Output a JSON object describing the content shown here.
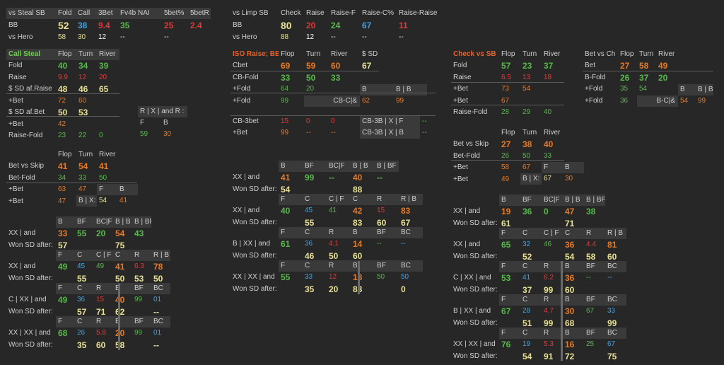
{
  "steal_table": {
    "header": [
      "vs Steal SB",
      "Fold",
      "Call",
      "3Bet",
      "Fv4b NAI",
      "5bet%",
      "5betR"
    ],
    "rows": [
      [
        "BB",
        "52",
        "38",
        "9.4",
        "35",
        "25",
        "2.4"
      ],
      [
        "vs Hero",
        "58",
        "30",
        "12",
        "--",
        "--",
        ""
      ]
    ]
  },
  "limp_table": {
    "header": [
      "vs Limp SB",
      "Check",
      "Raise",
      "Raise-F",
      "Raise-C%",
      "Raise-Raise"
    ],
    "rows": [
      [
        "BB",
        "80",
        "20",
        "24",
        "67",
        "11"
      ],
      [
        "vs Hero",
        "88",
        "12",
        "--",
        "--",
        "--"
      ]
    ]
  },
  "call_steal": {
    "title": "Call Steal",
    "cols": [
      "Flop",
      "Turn",
      "River"
    ],
    "rows": [
      {
        "label": "Fold",
        "v": [
          "40",
          "34",
          "39"
        ]
      },
      {
        "label": "Raise",
        "v": [
          "9.9",
          "12",
          "20"
        ]
      },
      {
        "label": "$ SD af.Raise",
        "v": [
          "48",
          "46",
          "65"
        ]
      },
      {
        "label": "+Bet",
        "v": [
          "72",
          "60",
          ""
        ]
      },
      {
        "label": "$ SD af.Bet",
        "v": [
          "50",
          "53",
          ""
        ]
      },
      {
        "label": "+Bet",
        "v": [
          "42",
          "",
          ""
        ]
      },
      {
        "label": "Raise-Fold",
        "v": [
          "23",
          "22",
          "0"
        ]
      }
    ],
    "rx": {
      "header": "R | X | and R :",
      "cols": [
        "F",
        "B"
      ],
      "v": [
        "59",
        "30"
      ]
    }
  },
  "iso_raise": {
    "title": "ISO Raise; BB",
    "cols": [
      "Flop",
      "Turn",
      "River",
      "$ SD"
    ],
    "rows": [
      {
        "label": "Cbet",
        "v": [
          "69",
          "59",
          "60",
          "67"
        ]
      },
      {
        "label": "CB-Fold",
        "v": [
          "33",
          "50",
          "33"
        ]
      },
      {
        "label": "+Fold",
        "v": [
          "64",
          "20"
        ]
      },
      {
        "label": "+Fold",
        "v": [
          "99"
        ]
      }
    ],
    "bhead": [
      "B",
      "B | B"
    ],
    "cbc": {
      "label": "CB-C|&",
      "v": [
        "62",
        "99"
      ]
    },
    "cb3bet": {
      "label": "CB-3bet",
      "v": [
        "15",
        "0",
        "0"
      ],
      "x": "CB-3B | X | F",
      "xv": "--"
    },
    "bet": {
      "label": "+Bet",
      "v": [
        "99",
        "--",
        "--"
      ],
      "x": "CB-3B | X | B",
      "xv": "--"
    }
  },
  "check_sb": {
    "title": "Check vs SB",
    "cols": [
      "Flop",
      "Turn",
      "River"
    ],
    "rows": [
      {
        "label": "Fold",
        "v": [
          "57",
          "23",
          "37"
        ]
      },
      {
        "label": "Raise",
        "v": [
          "6.5",
          "13",
          "18"
        ]
      },
      {
        "label": "+Bet",
        "v": [
          "73",
          "54"
        ]
      },
      {
        "label": "+Bet",
        "v": [
          "67"
        ]
      },
      {
        "label": "Raise-Fold",
        "v": [
          "28",
          "29",
          "40"
        ]
      }
    ]
  },
  "bet_ch": {
    "title": "Bet vs Ch",
    "cols": [
      "Flop",
      "Turn",
      "River"
    ],
    "rows": [
      {
        "label": "Bet",
        "v": [
          "27",
          "58",
          "49"
        ]
      },
      {
        "label": "B-Fold",
        "v": [
          "26",
          "37",
          "20"
        ]
      },
      {
        "label": "+Fold",
        "v": [
          "35",
          "54"
        ]
      },
      {
        "label": "+Fold",
        "v": [
          "36"
        ]
      }
    ],
    "bhead": [
      "B",
      "B | B"
    ],
    "bc": {
      "label": "B-C|&",
      "v": [
        "54",
        "99"
      ]
    }
  },
  "bet_skip_left": {
    "cols": [
      "Flop",
      "Turn",
      "River"
    ],
    "rows": [
      {
        "label": "Bet vs Skip",
        "v": [
          "41",
          "54",
          "41"
        ]
      },
      {
        "label": "Bet-Fold",
        "v": [
          "34",
          "33",
          "50"
        ]
      },
      {
        "label": "+Bet",
        "v": [
          "63",
          "47"
        ]
      },
      {
        "label": "+Bet",
        "v": [
          "47"
        ]
      }
    ],
    "fb": [
      "F",
      "B"
    ],
    "bx": {
      "label": "B | X:",
      "v": [
        "54",
        "41"
      ]
    }
  },
  "bet_skip_right": {
    "cols": [
      "Flop",
      "Turn",
      "River"
    ],
    "rows": [
      {
        "label": "Bet vs Skip",
        "v": [
          "27",
          "38",
          "40"
        ]
      },
      {
        "label": "Bet-Fold",
        "v": [
          "26",
          "50",
          "33"
        ]
      },
      {
        "label": "+Bet",
        "v": [
          "58",
          "67"
        ]
      },
      {
        "label": "+Bet",
        "v": [
          "49"
        ]
      }
    ],
    "fb": [
      "F",
      "B"
    ],
    "bx": {
      "label": "B | X:",
      "v": [
        "67",
        "30"
      ]
    }
  },
  "won_sd": "Won SD after:",
  "left_blocks": [
    {
      "label": "XX | and",
      "heads": [
        "B",
        "BF",
        "BC|F",
        "B | B",
        "B | BF"
      ],
      "v1": [
        "33",
        "55",
        "20",
        "54",
        "43"
      ],
      "v2": [
        "57",
        "",
        "",
        "75",
        ""
      ]
    },
    {
      "label": "XX | and",
      "heads": [
        "F",
        "C",
        "C | F",
        "C",
        "R",
        "R | B"
      ],
      "v1": [
        "49",
        "45",
        "49",
        "41",
        "6.3",
        "78"
      ],
      "v2": [
        "",
        "55",
        "",
        "50",
        "53",
        "50"
      ]
    },
    {
      "label": "C | XX | and",
      "heads": [
        "F",
        "C",
        "R",
        "B",
        "BF",
        "BC"
      ],
      "v1": [
        "49",
        "36",
        "15",
        "40",
        "99",
        "01"
      ],
      "v2": [
        "",
        "57",
        "71",
        "62",
        "",
        "--"
      ]
    },
    {
      "label": "XX | XX | and",
      "heads": [
        "F",
        "C",
        "R",
        "B",
        "BF",
        "BC"
      ],
      "v1": [
        "68",
        "26",
        "5.8",
        "20",
        "99",
        "01"
      ],
      "v2": [
        "",
        "35",
        "60",
        "58",
        "",
        "--"
      ]
    }
  ],
  "mid_blocks": [
    {
      "label": "XX | and",
      "heads": [
        "B",
        "BF",
        "BC|F",
        "B | B",
        "B | BF"
      ],
      "v1": [
        "41",
        "99",
        "--",
        "40",
        "--"
      ],
      "v2": [
        "54",
        "",
        "",
        "88",
        ""
      ]
    },
    {
      "label": "XX | and",
      "heads": [
        "F",
        "C",
        "C | F",
        "C",
        "R",
        "R | B"
      ],
      "v1": [
        "40",
        "45",
        "41",
        "42",
        "15",
        "83"
      ],
      "v2": [
        "",
        "55",
        "",
        "83",
        "60",
        "67"
      ]
    },
    {
      "label": "B | XX | and",
      "heads": [
        "F",
        "C",
        "R",
        "B",
        "BF",
        "BC"
      ],
      "v1": [
        "61",
        "36",
        "4.1",
        "14",
        "--",
        "--"
      ],
      "v2": [
        "",
        "46",
        "50",
        "60",
        "",
        ""
      ]
    },
    {
      "label": "XX | XX | and",
      "heads": [
        "F",
        "C",
        "R",
        "B",
        "BF",
        "BC"
      ],
      "v1": [
        "55",
        "33",
        "12",
        "18",
        "50",
        "50"
      ],
      "v2": [
        "",
        "35",
        "20",
        "83",
        "",
        "0"
      ]
    }
  ],
  "right_blocks": [
    {
      "label": "XX | and",
      "heads": [
        "B",
        "BF",
        "BC|F",
        "B | B",
        "B | BF"
      ],
      "v1": [
        "19",
        "36",
        "0",
        "47",
        "38"
      ],
      "v2": [
        "61",
        "",
        "",
        "71",
        ""
      ]
    },
    {
      "label": "XX | and",
      "heads": [
        "F",
        "C",
        "C | F",
        "C",
        "R",
        "R | B"
      ],
      "v1": [
        "65",
        "32",
        "46",
        "36",
        "4.4",
        "81"
      ],
      "v2": [
        "",
        "52",
        "",
        "54",
        "58",
        "60"
      ]
    },
    {
      "label": "C | XX | and",
      "heads": [
        "F",
        "C",
        "R",
        "B",
        "BF",
        "BC"
      ],
      "v1": [
        "53",
        "41",
        "6.2",
        "36",
        "--",
        "--"
      ],
      "v2": [
        "",
        "37",
        "99",
        "60",
        "",
        ""
      ]
    },
    {
      "label": "B | XX | and",
      "heads": [
        "F",
        "C",
        "R",
        "B",
        "BF",
        "BC"
      ],
      "v1": [
        "67",
        "28",
        "4.7",
        "30",
        "67",
        "33"
      ],
      "v2": [
        "",
        "51",
        "99",
        "68",
        "",
        "99"
      ]
    },
    {
      "label": "XX | XX | and",
      "heads": [
        "F",
        "C",
        "R",
        "B",
        "BF",
        "BC"
      ],
      "v1": [
        "76",
        "19",
        "5.3",
        "16",
        "25",
        "67"
      ],
      "v2": [
        "",
        "54",
        "91",
        "72",
        "",
        "75"
      ]
    }
  ]
}
